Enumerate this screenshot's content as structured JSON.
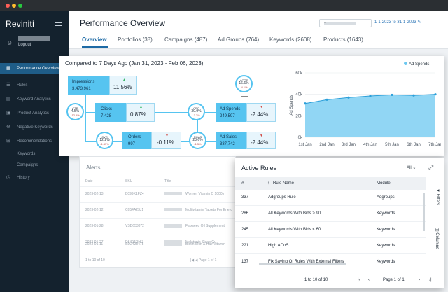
{
  "app": {
    "brand": "Reviniti",
    "logout": "Logout"
  },
  "sidebar": {
    "items": [
      {
        "icon": "grid-icon",
        "label": "Performance Overview",
        "active": true
      },
      {
        "icon": "rules-icon",
        "label": "Rules"
      },
      {
        "icon": "keyword-icon",
        "label": "Keyword Analytics"
      },
      {
        "icon": "product-icon",
        "label": "Product Analytics"
      },
      {
        "icon": "negative-icon",
        "label": "Negative Keywords"
      },
      {
        "icon": "recommend-icon",
        "label": "Recommendations"
      },
      {
        "icon": "",
        "label": "Keywords"
      },
      {
        "icon": "",
        "label": "Campaigns"
      },
      {
        "icon": "history-icon",
        "label": "History"
      }
    ]
  },
  "header": {
    "title": "Performance Overview",
    "date_range": "1-1-2023 to 31-1-2023",
    "tabs": [
      {
        "label": "Overview"
      },
      {
        "label": "Portfolios (38)"
      },
      {
        "label": "Campaigns (487)"
      },
      {
        "label": "Ad Groups (764)"
      },
      {
        "label": "Keywords (2608)"
      },
      {
        "label": "Products (1643)"
      }
    ]
  },
  "comparison": {
    "title": "Compared to 7 Days Ago (Jan 31, 2023 - Feb 06, 2023)",
    "impressions": {
      "label": "Impressions",
      "value": "3,473,961",
      "change": "11.56%"
    },
    "clicks": {
      "label": "Clicks",
      "value": "7,428",
      "change": "0.87%"
    },
    "orders": {
      "label": "Orders",
      "value": "997",
      "change": "-0.11%"
    },
    "ad_spends": {
      "label": "Ad Spends",
      "value": "249,597",
      "change": "-2.44%"
    },
    "ad_sales": {
      "label": "Ad Sales",
      "value": "337,742",
      "change": "-2.44%"
    },
    "circles": {
      "ctr": {
        "label": "CTR",
        "value": "4.5%",
        "change": "-12.5%"
      },
      "cvr": {
        "label": "CVR",
        "value": "12.2%",
        "change": "-1.53%"
      },
      "cpc": {
        "label": "CPC",
        "value": "30.9%",
        "change": "-3.2%"
      },
      "acos": {
        "label": "ACOS",
        "value": "16.6%",
        "change": "-4.1%"
      },
      "roas": {
        "label": "ROAS",
        "value": "23.6%",
        "change": "-1.5%"
      }
    }
  },
  "chart_data": {
    "type": "area",
    "x": [
      "1st Jan",
      "2nd Jan",
      "3rd Jan",
      "4th Jan",
      "5th Jan",
      "6th Jan",
      "7th Jan"
    ],
    "series": [
      {
        "name": "Ad Spends",
        "values": [
          31500,
          35000,
          37000,
          38500,
          39500,
          39000,
          40000
        ]
      }
    ],
    "ylabel": "Ad Spends",
    "ylim": [
      0,
      60000
    ],
    "yticks": [
      "0k",
      "20k",
      "40k",
      "60k"
    ],
    "legend": "top-right",
    "color": "#6cc8f0"
  },
  "alerts": {
    "title": "Alerts",
    "headers": [
      "Date",
      "SKU",
      "Title"
    ],
    "rows": [
      {
        "date": "2023-02-13",
        "sku": "B099K1FZ4",
        "title": "Women Vitamin C 1000m"
      },
      {
        "date": "2023-02-12",
        "sku": "C054A23J1",
        "title": "Multivitamin Tablets For Energ"
      },
      {
        "date": "2023-01-28",
        "sku": "VSD653872",
        "title": "Flaxseed Oil Supplement"
      },
      {
        "date": "2023-01-27",
        "sku": "D8494DHI3",
        "title": "Melatonin Sleep Gu"
      },
      {
        "date": "2023-01-11",
        "sku": "SD2428478",
        "title": "Biotin Skin & Hair Vitamin"
      }
    ],
    "footer": "1 to 10 of 10",
    "page": "Page 1 of 1"
  },
  "rules": {
    "title": "Active Rules",
    "filter": "All",
    "headers": [
      "#",
      "Rule Name",
      "Module"
    ],
    "rows": [
      {
        "id": "337",
        "name": "Adgroups Rule",
        "module": "Adgroups"
      },
      {
        "id": "286",
        "name": "All Keywords With Bids > 90",
        "module": "Keywords"
      },
      {
        "id": "245",
        "name": "All Keywords With Bids < 60",
        "module": "Keywords"
      },
      {
        "id": "221",
        "name": "High ACoS",
        "module": "Keywords"
      },
      {
        "id": "137",
        "name": "Fix Saving Of Rules With External Filters",
        "module": "Keywords"
      }
    ],
    "side": [
      "Filters",
      "Columns"
    ],
    "footer": "1 to 10 of 10",
    "page": "Page 1 of 1"
  }
}
